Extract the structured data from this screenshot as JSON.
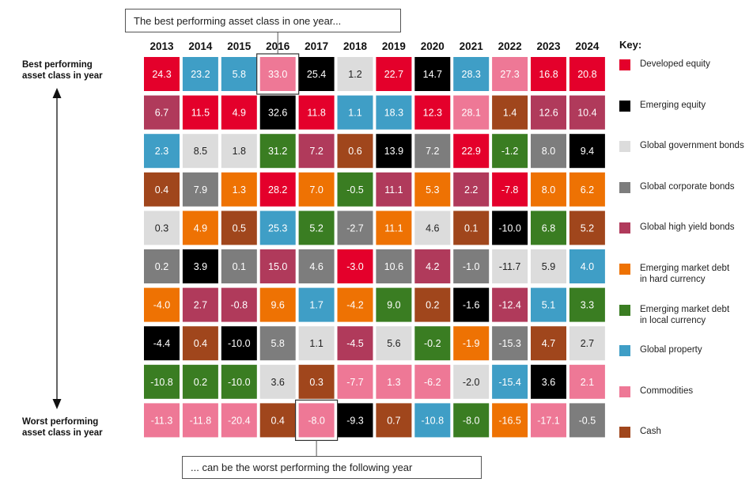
{
  "chart_data": {
    "type": "table",
    "title": "",
    "years": [
      "2013",
      "2014",
      "2015",
      "2016",
      "2017",
      "2018",
      "2019",
      "2020",
      "2021",
      "2022",
      "2023",
      "2024"
    ],
    "columns": [
      [
        {
          "v": "24.3",
          "c": "dev"
        },
        {
          "v": "6.7",
          "c": "hy"
        },
        {
          "v": "2.3",
          "c": "prop"
        },
        {
          "v": "0.4",
          "c": "cash"
        },
        {
          "v": "0.3",
          "c": "gov"
        },
        {
          "v": "0.2",
          "c": "corp"
        },
        {
          "v": "-4.0",
          "c": "emhard"
        },
        {
          "v": "-4.4",
          "c": "emeq"
        },
        {
          "v": "-10.8",
          "c": "emlocal"
        },
        {
          "v": "-11.3",
          "c": "comm"
        }
      ],
      [
        {
          "v": "23.2",
          "c": "prop"
        },
        {
          "v": "11.5",
          "c": "dev"
        },
        {
          "v": "8.5",
          "c": "gov"
        },
        {
          "v": "7.9",
          "c": "corp"
        },
        {
          "v": "4.9",
          "c": "emhard"
        },
        {
          "v": "3.9",
          "c": "emeq"
        },
        {
          "v": "2.7",
          "c": "hy"
        },
        {
          "v": "0.4",
          "c": "cash"
        },
        {
          "v": "0.2",
          "c": "emlocal"
        },
        {
          "v": "-11.8",
          "c": "comm"
        }
      ],
      [
        {
          "v": "5.8",
          "c": "prop"
        },
        {
          "v": "4.9",
          "c": "dev"
        },
        {
          "v": "1.8",
          "c": "gov"
        },
        {
          "v": "1.3",
          "c": "emhard"
        },
        {
          "v": "0.5",
          "c": "cash"
        },
        {
          "v": "0.1",
          "c": "corp"
        },
        {
          "v": "-0.8",
          "c": "hy"
        },
        {
          "v": "-10.0",
          "c": "emeq"
        },
        {
          "v": "-10.0",
          "c": "emlocal"
        },
        {
          "v": "-20.4",
          "c": "comm"
        }
      ],
      [
        {
          "v": "33.0",
          "c": "comm"
        },
        {
          "v": "32.6",
          "c": "emeq"
        },
        {
          "v": "31.2",
          "c": "emlocal"
        },
        {
          "v": "28.2",
          "c": "dev"
        },
        {
          "v": "25.3",
          "c": "prop"
        },
        {
          "v": "15.0",
          "c": "hy"
        },
        {
          "v": "9.6",
          "c": "emhard"
        },
        {
          "v": "5.8",
          "c": "corp"
        },
        {
          "v": "3.6",
          "c": "gov"
        },
        {
          "v": "0.4",
          "c": "cash"
        }
      ],
      [
        {
          "v": "25.4",
          "c": "emeq"
        },
        {
          "v": "11.8",
          "c": "dev"
        },
        {
          "v": "7.2",
          "c": "hy"
        },
        {
          "v": "7.0",
          "c": "emhard"
        },
        {
          "v": "5.2",
          "c": "emlocal"
        },
        {
          "v": "4.6",
          "c": "corp"
        },
        {
          "v": "1.7",
          "c": "prop"
        },
        {
          "v": "1.1",
          "c": "gov"
        },
        {
          "v": "0.3",
          "c": "cash"
        },
        {
          "v": "-8.0",
          "c": "comm"
        }
      ],
      [
        {
          "v": "1.2",
          "c": "gov"
        },
        {
          "v": "1.1",
          "c": "prop"
        },
        {
          "v": "0.6",
          "c": "cash"
        },
        {
          "v": "-0.5",
          "c": "emlocal"
        },
        {
          "v": "-2.7",
          "c": "corp"
        },
        {
          "v": "-3.0",
          "c": "dev"
        },
        {
          "v": "-4.2",
          "c": "emhard"
        },
        {
          "v": "-4.5",
          "c": "hy"
        },
        {
          "v": "-7.7",
          "c": "comm"
        },
        {
          "v": "-9.3",
          "c": "emeq"
        }
      ],
      [
        {
          "v": "22.7",
          "c": "dev"
        },
        {
          "v": "18.3",
          "c": "prop"
        },
        {
          "v": "13.9",
          "c": "emeq"
        },
        {
          "v": "11.1",
          "c": "hy"
        },
        {
          "v": "11.1",
          "c": "emhard"
        },
        {
          "v": "10.6",
          "c": "corp"
        },
        {
          "v": "9.0",
          "c": "emlocal"
        },
        {
          "v": "5.6",
          "c": "gov"
        },
        {
          "v": "1.3",
          "c": "comm"
        },
        {
          "v": "0.7",
          "c": "cash"
        }
      ],
      [
        {
          "v": "14.7",
          "c": "emeq"
        },
        {
          "v": "12.3",
          "c": "dev"
        },
        {
          "v": "7.2",
          "c": "corp"
        },
        {
          "v": "5.3",
          "c": "emhard"
        },
        {
          "v": "4.6",
          "c": "gov"
        },
        {
          "v": "4.2",
          "c": "hy"
        },
        {
          "v": "0.2",
          "c": "cash"
        },
        {
          "v": "-0.2",
          "c": "emlocal"
        },
        {
          "v": "-6.2",
          "c": "comm"
        },
        {
          "v": "-10.8",
          "c": "prop"
        }
      ],
      [
        {
          "v": "28.3",
          "c": "prop"
        },
        {
          "v": "28.1",
          "c": "comm"
        },
        {
          "v": "22.9",
          "c": "dev"
        },
        {
          "v": "2.2",
          "c": "hy"
        },
        {
          "v": "0.1",
          "c": "cash"
        },
        {
          "v": "-1.0",
          "c": "corp"
        },
        {
          "v": "-1.6",
          "c": "emeq"
        },
        {
          "v": "-1.9",
          "c": "emhard"
        },
        {
          "v": "-2.0",
          "c": "gov"
        },
        {
          "v": "-8.0",
          "c": "emlocal"
        }
      ],
      [
        {
          "v": "27.3",
          "c": "comm"
        },
        {
          "v": "1.4",
          "c": "cash"
        },
        {
          "v": "-1.2",
          "c": "emlocal"
        },
        {
          "v": "-7.8",
          "c": "dev"
        },
        {
          "v": "-10.0",
          "c": "emeq"
        },
        {
          "v": "-11.7",
          "c": "gov"
        },
        {
          "v": "-12.4",
          "c": "hy"
        },
        {
          "v": "-15.3",
          "c": "corp"
        },
        {
          "v": "-15.4",
          "c": "prop"
        },
        {
          "v": "-16.5",
          "c": "emhard"
        }
      ],
      [
        {
          "v": "16.8",
          "c": "dev"
        },
        {
          "v": "12.6",
          "c": "hy"
        },
        {
          "v": "8.0",
          "c": "corp"
        },
        {
          "v": "8.0",
          "c": "emhard"
        },
        {
          "v": "6.8",
          "c": "emlocal"
        },
        {
          "v": "5.9",
          "c": "gov"
        },
        {
          "v": "5.1",
          "c": "prop"
        },
        {
          "v": "4.7",
          "c": "cash"
        },
        {
          "v": "3.6",
          "c": "emeq"
        },
        {
          "v": "-17.1",
          "c": "comm"
        }
      ],
      [
        {
          "v": "20.8",
          "c": "dev"
        },
        {
          "v": "10.4",
          "c": "hy"
        },
        {
          "v": "9.4",
          "c": "emeq"
        },
        {
          "v": "6.2",
          "c": "emhard"
        },
        {
          "v": "5.2",
          "c": "cash"
        },
        {
          "v": "4.0",
          "c": "prop"
        },
        {
          "v": "3.3",
          "c": "emlocal"
        },
        {
          "v": "2.7",
          "c": "gov"
        },
        {
          "v": "2.1",
          "c": "comm"
        },
        {
          "v": "-0.5",
          "c": "corp"
        }
      ]
    ],
    "highlight": [
      {
        "year": "2016",
        "rank": 1
      },
      {
        "year": "2017",
        "rank": 10
      }
    ]
  },
  "labels": {
    "best": "Best performing\nasset class in year",
    "worst": "Worst performing\nasset class in year",
    "callout_top": "The best performing asset class in one year...",
    "callout_bottom": "... can be the worst performing the following year",
    "key_title": "Key:"
  },
  "key": [
    {
      "id": "dev",
      "label": "Developed equity",
      "color": "#e4002b",
      "text": "#ffffff"
    },
    {
      "id": "emeq",
      "label": "Emerging equity",
      "color": "#000000",
      "text": "#ffffff"
    },
    {
      "id": "gov",
      "label": "Global government bonds",
      "color": "#dcdcdc",
      "text": "#222222"
    },
    {
      "id": "corp",
      "label": "Global corporate bonds",
      "color": "#7d7d7d",
      "text": "#ffffff"
    },
    {
      "id": "hy",
      "label": "Global high yield bonds",
      "color": "#b03a5b",
      "text": "#ffffff"
    },
    {
      "id": "emhard",
      "label": "Emerging market debt\nin hard currency",
      "color": "#ee7203",
      "text": "#ffffff"
    },
    {
      "id": "emlocal",
      "label": "Emerging market debt\nin local currency",
      "color": "#3a7d22",
      "text": "#ffffff"
    },
    {
      "id": "prop",
      "label": "Global property",
      "color": "#3f9ec6",
      "text": "#ffffff"
    },
    {
      "id": "comm",
      "label": "Commodities",
      "color": "#ee7896",
      "text": "#ffffff"
    },
    {
      "id": "cash",
      "label": "Cash",
      "color": "#a0461c",
      "text": "#ffffff"
    }
  ]
}
